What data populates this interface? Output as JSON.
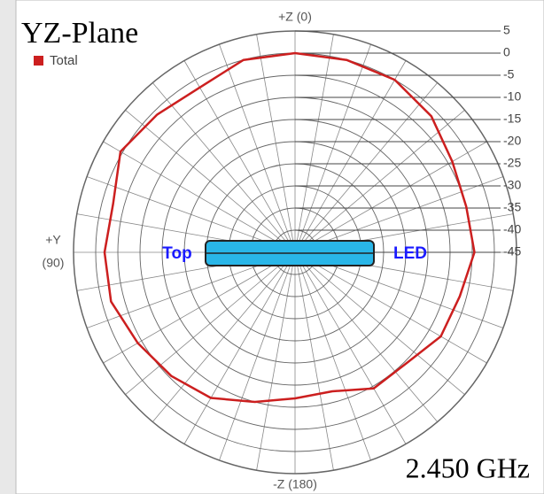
{
  "chart_data": {
    "type": "polar",
    "title": "YZ-Plane",
    "frequency": "2.450 GHz",
    "angle_labels": {
      "top": "+Z (0)",
      "left": [
        "+Y",
        "(90)"
      ],
      "bottom": "-Z (180)"
    },
    "annotations": {
      "left": "Top",
      "right": "LED"
    },
    "rlim": [
      -45,
      5
    ],
    "rticks": [
      5,
      0,
      -5,
      -10,
      -15,
      -20,
      -25,
      -30,
      -35,
      -40,
      -45
    ],
    "theta": [
      0,
      15,
      30,
      45,
      60,
      75,
      90,
      105,
      120,
      135,
      150,
      165,
      180,
      195,
      210,
      225,
      240,
      255,
      270,
      285,
      300,
      315,
      330,
      345
    ],
    "series": [
      {
        "name": "Total",
        "color": "#cc1f1f",
        "values": [
          0,
          0,
          -2,
          -1,
          0.5,
          -2.5,
          -2,
          -2,
          -4,
          -5.5,
          -7,
          -10,
          -12,
          -12.5,
          -9.5,
          -9.5,
          -7,
          -6.5,
          -4.5,
          -5,
          -4,
          -1.5,
          0,
          0
        ]
      }
    ]
  }
}
